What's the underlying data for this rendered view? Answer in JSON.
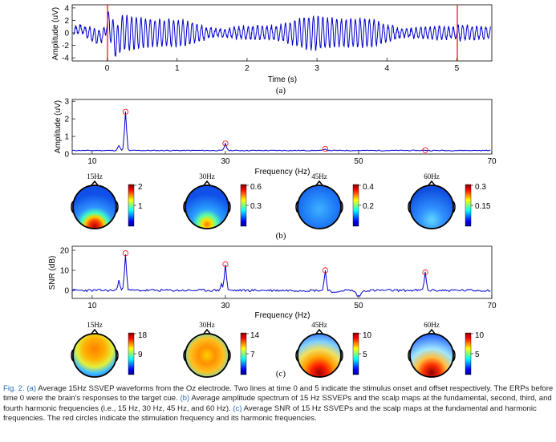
{
  "figure": {
    "panel_a": {
      "label": "(a)",
      "ylabel": "Amplitude (uV)",
      "xlabel": "Time (s)",
      "yticks": [
        "4",
        "2",
        "0",
        "-2",
        "-4"
      ],
      "xticks": [
        "0",
        "1",
        "2",
        "3",
        "4",
        "5"
      ]
    },
    "panel_b": {
      "label": "(b)",
      "ylabel": "Amplitude (uV)",
      "xlabel": "Frequency (Hz)",
      "yticks": [
        "3",
        "2",
        "1",
        "0"
      ],
      "xticks": [
        "10",
        "30",
        "50",
        "70"
      ],
      "maps": [
        {
          "title": "15Hz",
          "cbar_top": "2",
          "cbar_mid": "1"
        },
        {
          "title": "30Hz",
          "cbar_top": "0.6",
          "cbar_mid": "0.3"
        },
        {
          "title": "45Hz",
          "cbar_top": "0.4",
          "cbar_mid": "0.2"
        },
        {
          "title": "60Hz",
          "cbar_top": "0.3",
          "cbar_mid": "0.15"
        }
      ]
    },
    "panel_c": {
      "label": "(c)",
      "ylabel": "SNR (dB)",
      "xlabel": "Frequency (Hz)",
      "yticks": [
        "20",
        "10",
        "0"
      ],
      "xticks": [
        "10",
        "30",
        "50",
        "70"
      ],
      "maps": [
        {
          "title": "15Hz",
          "cbar_top": "18",
          "cbar_mid": "9"
        },
        {
          "title": "30Hz",
          "cbar_top": "14",
          "cbar_mid": "7"
        },
        {
          "title": "45Hz",
          "cbar_top": "10",
          "cbar_mid": "5"
        },
        {
          "title": "60Hz",
          "cbar_top": "10",
          "cbar_mid": "5"
        }
      ]
    }
  },
  "caption": {
    "fig_label": "Fig. 2.",
    "ref_a": "(a)",
    "text_a": " Average 15Hz SSVEP waveforms from the Oz electrode. Two lines at time 0 and 5 indicate the stimulus onset and offset respectively. The ERPs before time 0 were the brain's responses to the target cue. ",
    "ref_b": "(b)",
    "text_b": " Average amplitude spectrum of 15 Hz SSVEPs and the scalp maps at the fundamental, second, third, and fourth harmonic frequencies (i.e., 15 Hz, 30 Hz, 45 Hz, and 60 Hz). ",
    "ref_c": "(c)",
    "text_c": " Average SNR of 15 Hz SSVEPs and the scalp maps at the fundamental and harmonic frequencies. The red circles indicate the stimulation frequency and its harmonic frequencies."
  },
  "chart_data": [
    {
      "type": "line",
      "title": "",
      "xlabel": "Time (s)",
      "ylabel": "Amplitude (uV)",
      "xlim": [
        -0.5,
        5.5
      ],
      "ylim": [
        -4.5,
        4.5
      ],
      "series": [
        {
          "values_description": "15 Hz oscillation, amplitude ~1.5-3 uV between 0 and 5 s, ~1 uV outside",
          "color": "#0000cc"
        }
      ],
      "markers": {
        "vertical_lines_at": [
          0,
          5
        ],
        "color": "#ff0000"
      }
    },
    {
      "type": "line",
      "xlabel": "Frequency (Hz)",
      "ylabel": "Amplitude (uV)",
      "xlim": [
        7,
        70
      ],
      "ylim": [
        0,
        3
      ],
      "peaks": [
        {
          "x": 15,
          "y": 2.4
        },
        {
          "x": 30,
          "y": 0.6
        },
        {
          "x": 45,
          "y": 0.3
        },
        {
          "x": 60,
          "y": 0.22
        }
      ],
      "baseline": 0.2
    },
    {
      "type": "line",
      "xlabel": "Frequency (Hz)",
      "ylabel": "SNR (dB)",
      "xlim": [
        7,
        70
      ],
      "ylim": [
        -5,
        22
      ],
      "peaks": [
        {
          "x": 15,
          "y": 18.5
        },
        {
          "x": 30,
          "y": 13
        },
        {
          "x": 45,
          "y": 10
        },
        {
          "x": 60,
          "y": 9
        }
      ],
      "baseline": 0
    }
  ],
  "colors": {
    "line": "#0000cc",
    "marker": "#ff0000",
    "caption_ref": "#2a6db5"
  }
}
